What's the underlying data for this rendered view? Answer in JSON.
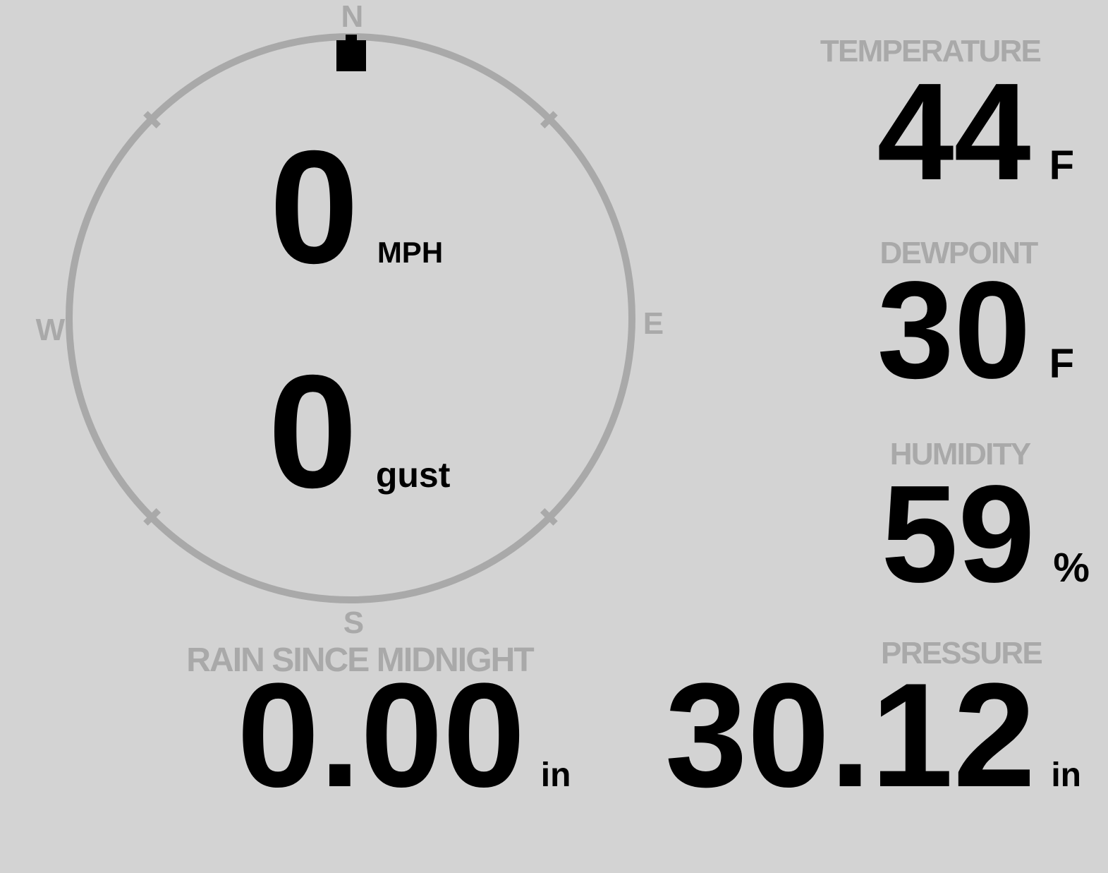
{
  "colors": {
    "background": "#d3d3d3",
    "muted_gray": "#a9a9a9",
    "value_black": "#000000"
  },
  "compass": {
    "cardinal_labels": {
      "north": "N",
      "east": "E",
      "south": "S",
      "west": "W"
    },
    "direction_deg": 0,
    "speed": {
      "value": "0",
      "unit": "MPH"
    },
    "gust": {
      "value": "0",
      "unit": "gust"
    }
  },
  "metrics": {
    "temperature": {
      "label": "TEMPERATURE",
      "value": "44",
      "unit": "F"
    },
    "dewpoint": {
      "label": "DEWPOINT",
      "value": "30",
      "unit": "F"
    },
    "humidity": {
      "label": "HUMIDITY",
      "value": "59",
      "unit": "%"
    },
    "rain_since_midnight": {
      "label": "RAIN SINCE MIDNIGHT",
      "value": "0.00",
      "unit": "in"
    },
    "pressure": {
      "label": "PRESSURE",
      "value": "30.12",
      "unit": "in"
    }
  }
}
